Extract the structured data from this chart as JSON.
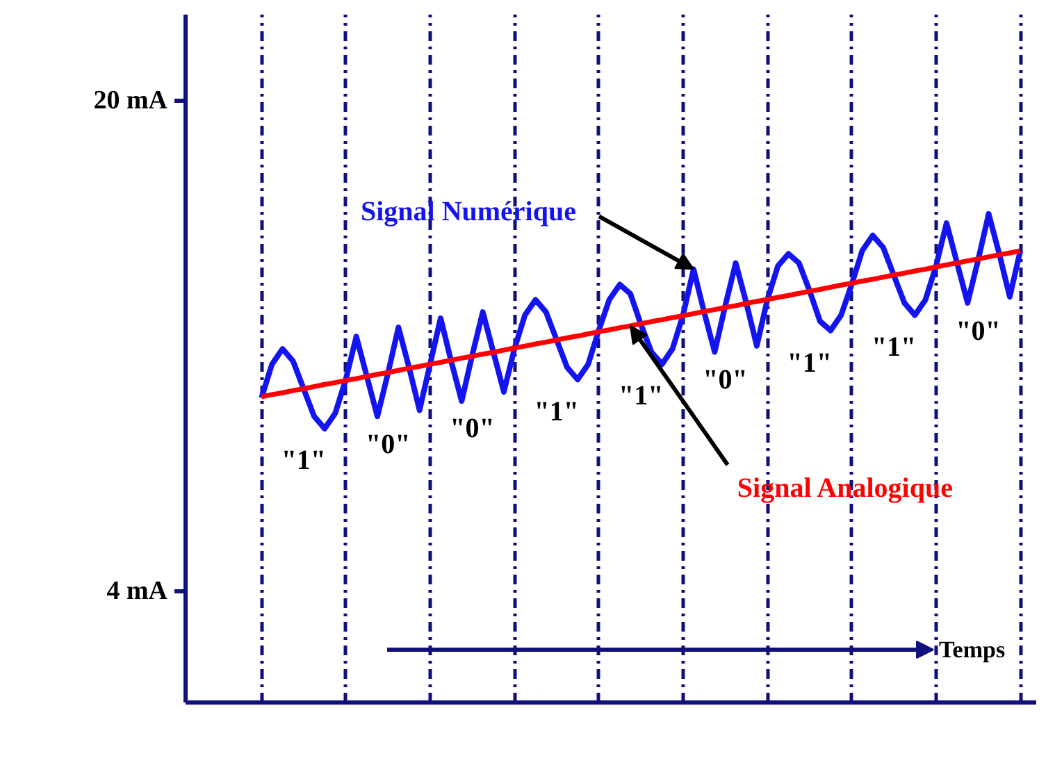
{
  "chart_data": {
    "type": "line",
    "xlabel": "Temps",
    "categories": [
      null,
      null,
      null,
      null,
      null,
      null,
      null,
      null,
      null,
      null,
      null,
      null,
      null,
      null,
      null,
      null,
      null,
      null,
      null,
      null,
      null,
      null,
      null,
      null,
      null,
      null,
      null,
      null,
      null,
      null,
      null,
      null,
      null,
      null,
      null,
      null,
      null,
      null,
      null,
      null,
      null,
      null,
      null,
      null,
      null,
      null,
      null,
      null,
      null,
      null,
      null,
      null,
      null,
      null,
      null,
      null,
      null,
      null,
      null,
      null,
      null,
      null,
      null,
      null,
      null,
      null,
      null,
      null,
      null,
      null,
      null,
      null,
      null
    ],
    "ylim": [
      0.37,
      22.8
    ],
    "yticks": [
      {
        "value": 4,
        "label": "4 mA"
      },
      {
        "value": 20,
        "label": "20 mA"
      }
    ],
    "tick_labels": "y",
    "grid": "x",
    "legend": false,
    "marker": "none",
    "line_style": "solid",
    "series": [
      {
        "name": "Signal Numérique",
        "color": "#1414f0",
        "values": [
          10.3,
          11.4,
          11.9,
          11.5,
          10.6,
          9.7,
          9.3,
          9.8,
          10.9,
          12.3,
          11.0,
          9.7,
          11.1,
          12.6,
          11.3,
          9.9,
          11.4,
          12.9,
          11.5,
          10.2,
          11.7,
          13.1,
          11.8,
          10.5,
          11.9,
          13.0,
          13.5,
          13.1,
          12.2,
          11.3,
          10.9,
          11.4,
          12.5,
          13.5,
          14.0,
          13.7,
          12.7,
          11.8,
          11.4,
          11.9,
          13.0,
          14.5,
          13.1,
          11.8,
          13.3,
          14.7,
          13.4,
          12.0,
          13.5,
          14.6,
          15.0,
          14.7,
          13.8,
          12.8,
          12.5,
          13.0,
          14.0,
          15.1,
          15.6,
          15.2,
          14.3,
          13.4,
          13.0,
          13.5,
          14.6,
          16.0,
          14.7,
          13.4,
          14.8,
          16.3,
          15.0,
          13.6,
          15.1
        ]
      },
      {
        "name": "Signal Analogique",
        "color": "#ff0000",
        "values": [
          10.34,
          10.41,
          10.47,
          10.54,
          10.6,
          10.67,
          10.74,
          10.8,
          10.87,
          10.93,
          11.0,
          11.07,
          11.13,
          11.2,
          11.27,
          11.33,
          11.4,
          11.46,
          11.53,
          11.6,
          11.66,
          11.73,
          11.79,
          11.86,
          11.93,
          11.99,
          12.06,
          12.12,
          12.19,
          12.26,
          12.32,
          12.39,
          12.46,
          12.52,
          12.59,
          12.65,
          12.72,
          12.79,
          12.85,
          12.92,
          12.98,
          13.05,
          13.12,
          13.18,
          13.25,
          13.31,
          13.38,
          13.45,
          13.51,
          13.58,
          13.64,
          13.71,
          13.78,
          13.84,
          13.91,
          13.98,
          14.04,
          14.11,
          14.17,
          14.24,
          14.31,
          14.37,
          14.44,
          14.5,
          14.57,
          14.64,
          14.7,
          14.77,
          14.83,
          14.9,
          14.97,
          15.03,
          15.1
        ]
      }
    ],
    "annotations": [
      "\"1\"",
      "\"0\"",
      "\"0\"",
      "\"1\"",
      "\"1\"",
      "\"0\"",
      "\"1\"",
      "\"1\"",
      "\"0\""
    ]
  }
}
